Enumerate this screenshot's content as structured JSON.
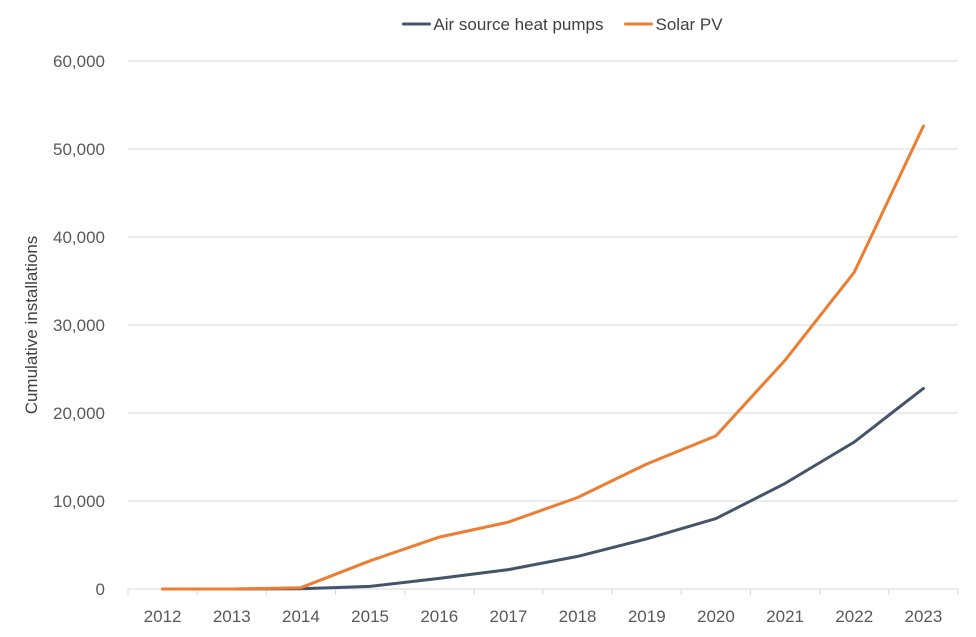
{
  "chart_data": {
    "type": "line",
    "title": "",
    "xlabel": "",
    "ylabel": "Cumulative installations",
    "ylim": [
      0,
      60000
    ],
    "yticks": [
      0,
      10000,
      20000,
      30000,
      40000,
      50000,
      60000
    ],
    "ytick_labels": [
      "0",
      "10,000",
      "20,000",
      "30,000",
      "40,000",
      "50,000",
      "60,000"
    ],
    "grid": true,
    "legend_position": "top-center",
    "categories": [
      "2012",
      "2013",
      "2014",
      "2015",
      "2016",
      "2017",
      "2018",
      "2019",
      "2020",
      "2021",
      "2022",
      "2023"
    ],
    "series": [
      {
        "name": "Air source heat pumps",
        "color": "#44546a",
        "values": [
          0,
          0,
          30,
          300,
          1200,
          2200,
          3700,
          5700,
          8000,
          12000,
          16700,
          22800
        ]
      },
      {
        "name": "Solar PV",
        "color": "#ed7d31",
        "values": [
          0,
          0,
          150,
          3200,
          5900,
          7600,
          10400,
          14200,
          17400,
          26000,
          36000,
          52600
        ]
      }
    ]
  }
}
